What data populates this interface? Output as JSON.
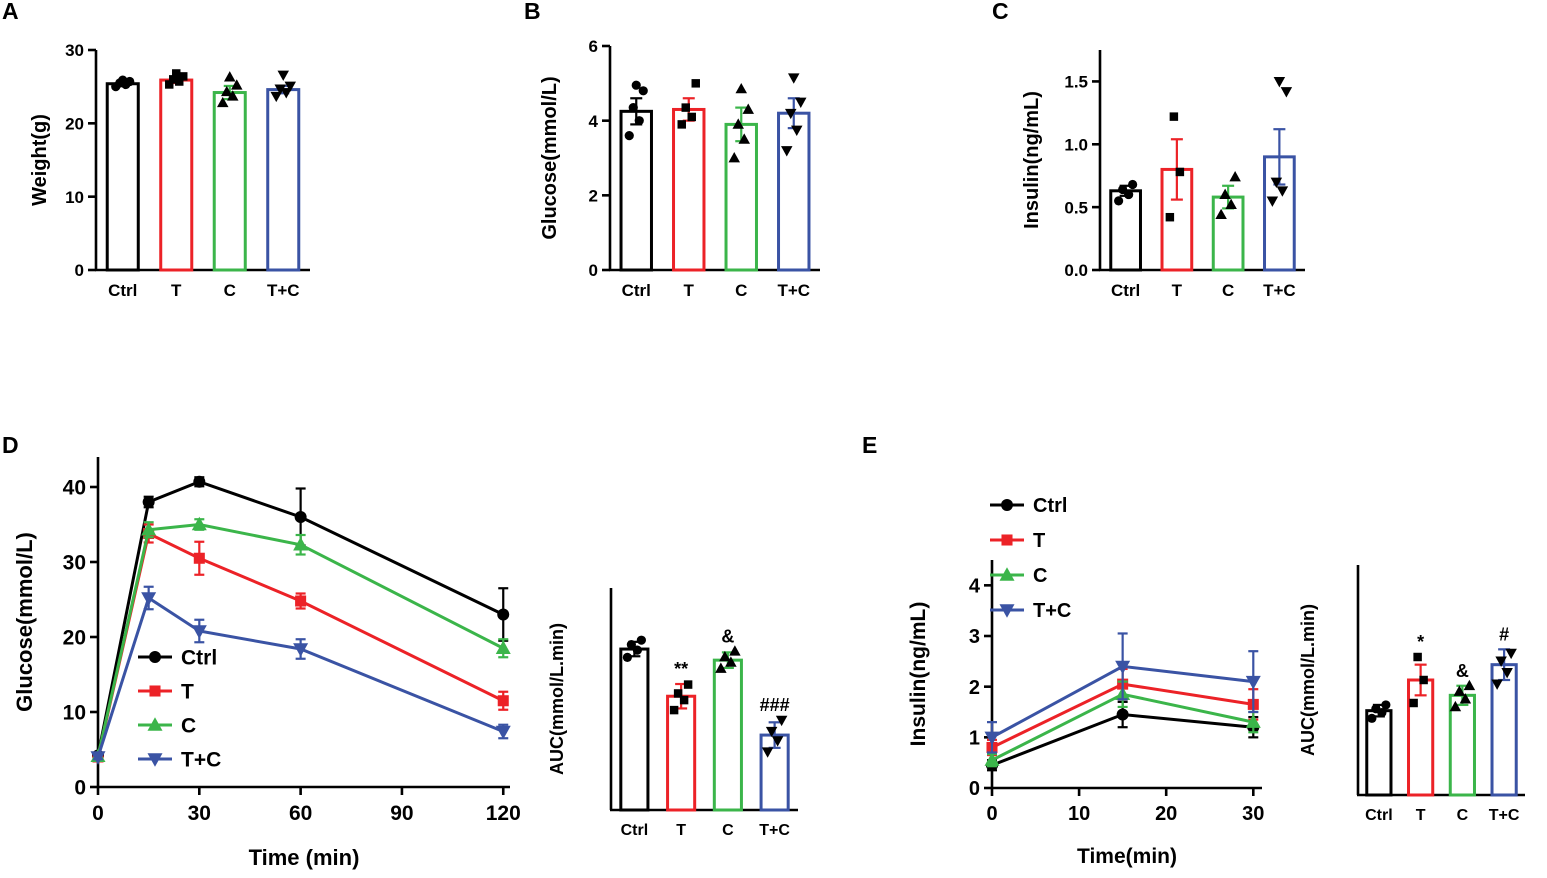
{
  "panels": [
    {
      "label": "A"
    },
    {
      "label": "B"
    },
    {
      "label": "C"
    },
    {
      "label": "D"
    },
    {
      "label": "E"
    }
  ],
  "group_names": [
    "Ctrl",
    "T",
    "C",
    "T+C"
  ],
  "series_colors": [
    "#000000",
    "#EC2227",
    "#3BB54A",
    "#3A53A4"
  ],
  "scatter_point_color": "#000000",
  "chart_data": [
    {
      "id": "A",
      "type": "bar",
      "title": "",
      "ylabel": "Weight(g)",
      "categories": [
        "Ctrl",
        "T",
        "C",
        "T+C"
      ],
      "values": [
        25.4,
        25.9,
        24.2,
        24.6
      ],
      "errors": [
        0.3,
        0.4,
        0.9,
        0.5
      ],
      "scatter": [
        [
          25.0,
          25.3,
          25.5,
          25.7,
          25.9
        ],
        [
          25.3,
          25.7,
          26.0,
          26.4,
          26.8
        ],
        [
          22.8,
          23.7,
          24.3,
          25.2,
          26.3
        ],
        [
          23.7,
          24.2,
          24.7,
          25.1,
          26.6
        ]
      ],
      "ylim": [
        0,
        30
      ],
      "yticks": [
        0,
        10,
        20,
        30
      ],
      "ytick_decimals": 0
    },
    {
      "id": "B",
      "type": "bar",
      "title": "",
      "ylabel": "Glucose(mmol/L)",
      "categories": [
        "Ctrl",
        "T",
        "C",
        "T+C"
      ],
      "values": [
        4.25,
        4.3,
        3.9,
        4.2
      ],
      "errors": [
        0.35,
        0.3,
        0.45,
        0.4
      ],
      "scatter": [
        [
          3.6,
          4.0,
          4.35,
          4.8,
          4.95
        ],
        [
          3.9,
          4.1,
          4.35,
          5.0
        ],
        [
          3.0,
          3.5,
          3.9,
          4.3,
          4.85
        ],
        [
          3.2,
          3.75,
          4.2,
          4.5,
          5.15
        ]
      ],
      "ylim": [
        0,
        6
      ],
      "yticks": [
        0,
        2,
        4,
        6
      ],
      "ytick_decimals": 0
    },
    {
      "id": "C",
      "type": "bar",
      "title": "",
      "ylabel": "Insulin(ng/mL)",
      "categories": [
        "Ctrl",
        "T",
        "C",
        "T+C"
      ],
      "values": [
        0.63,
        0.8,
        0.58,
        0.9
      ],
      "errors": [
        0.04,
        0.24,
        0.09,
        0.22
      ],
      "scatter": [
        [
          0.55,
          0.6,
          0.64,
          0.68
        ],
        [
          0.42,
          0.78,
          1.22
        ],
        [
          0.44,
          0.52,
          0.6,
          0.74
        ],
        [
          0.55,
          0.63,
          0.7,
          1.42,
          1.5
        ]
      ],
      "ylim": [
        0,
        1.75
      ],
      "yticks": [
        0,
        0.5,
        1.0,
        1.5
      ],
      "ytick_decimals": 1
    },
    {
      "id": "D",
      "type": "line",
      "title": "",
      "xlabel": "Time (min)",
      "ylabel": "Glucose(mmol/L)",
      "x": [
        0,
        15,
        30,
        60,
        120
      ],
      "xticks": [
        0,
        30,
        60,
        90,
        120
      ],
      "xlim": [
        0,
        122
      ],
      "ylim": [
        0,
        44
      ],
      "yticks": [
        0,
        10,
        20,
        30,
        40
      ],
      "legend_position": "inside-lower-left",
      "series": [
        {
          "name": "Ctrl",
          "marker": "circle",
          "values": [
            4.2,
            38.0,
            40.7,
            36.0,
            23.0
          ],
          "errors": [
            0.3,
            0.7,
            0.6,
            3.8,
            3.5
          ]
        },
        {
          "name": "T",
          "marker": "square",
          "values": [
            4.0,
            33.8,
            30.5,
            24.8,
            11.5
          ],
          "errors": [
            0.3,
            1.2,
            2.2,
            1.0,
            1.2
          ]
        },
        {
          "name": "C",
          "marker": "tri-up",
          "values": [
            4.1,
            34.3,
            35.0,
            32.3,
            18.5
          ],
          "errors": [
            0.3,
            1.0,
            0.7,
            1.3,
            1.2
          ]
        },
        {
          "name": "T+C",
          "marker": "tri-down",
          "values": [
            4.0,
            25.2,
            20.8,
            18.4,
            7.4
          ],
          "errors": [
            0.3,
            1.5,
            1.5,
            1.3,
            0.9
          ]
        }
      ]
    },
    {
      "id": "D_AUC",
      "type": "bar",
      "title": "",
      "ylabel": "AUC(mmol/L.min)",
      "categories": [
        "Ctrl",
        "T",
        "C",
        "T+C"
      ],
      "values": [
        2900,
        2050,
        2700,
        1350
      ],
      "errors": [
        130,
        220,
        140,
        230
      ],
      "scatter": [
        [
          2750,
          2880,
          2980,
          3060
        ],
        [
          1800,
          1980,
          2100,
          2260
        ],
        [
          2550,
          2660,
          2760,
          2860
        ],
        [
          1050,
          1250,
          1420,
          1620
        ]
      ],
      "ylim": [
        0,
        4000
      ],
      "yticks": [],
      "ytick_decimals": 0,
      "annotations": [
        "",
        "**",
        "&",
        "###"
      ]
    },
    {
      "id": "E",
      "type": "line",
      "title": "",
      "xlabel": "Time(min)",
      "ylabel": "Insulin(ng/mL)",
      "x": [
        0,
        15,
        30
      ],
      "xticks": [
        0,
        10,
        20,
        30
      ],
      "xlim": [
        0,
        31
      ],
      "ylim": [
        0,
        4.5
      ],
      "yticks": [
        0,
        1,
        2,
        3,
        4
      ],
      "legend_position": "upper-left",
      "series": [
        {
          "name": "Ctrl",
          "marker": "circle",
          "values": [
            0.45,
            1.45,
            1.2
          ],
          "errors": [
            0.1,
            0.25,
            0.2
          ]
        },
        {
          "name": "T",
          "marker": "square",
          "values": [
            0.8,
            2.05,
            1.65
          ],
          "errors": [
            0.15,
            0.3,
            0.3
          ]
        },
        {
          "name": "C",
          "marker": "tri-up",
          "values": [
            0.55,
            1.85,
            1.3
          ],
          "errors": [
            0.12,
            0.25,
            0.2
          ]
        },
        {
          "name": "T+C",
          "marker": "tri-down",
          "values": [
            1.0,
            2.4,
            2.1
          ],
          "errors": [
            0.3,
            0.65,
            0.6
          ]
        }
      ]
    },
    {
      "id": "E_AUC",
      "type": "bar",
      "title": "",
      "ylabel": "AUC(mmol/L.min)",
      "categories": [
        "Ctrl",
        "T",
        "C",
        "T+C"
      ],
      "values": [
        22,
        30,
        26,
        34
      ],
      "errors": [
        1.5,
        4,
        2.5,
        4
      ],
      "scatter": [
        [
          20,
          21.5,
          22.5,
          23.5
        ],
        [
          24,
          30,
          36
        ],
        [
          23,
          25,
          27,
          28.5
        ],
        [
          29,
          32,
          35,
          37
        ]
      ],
      "ylim": [
        0,
        60
      ],
      "yticks": [],
      "ytick_decimals": 0,
      "annotations": [
        "",
        "*",
        "&",
        "#"
      ]
    }
  ]
}
